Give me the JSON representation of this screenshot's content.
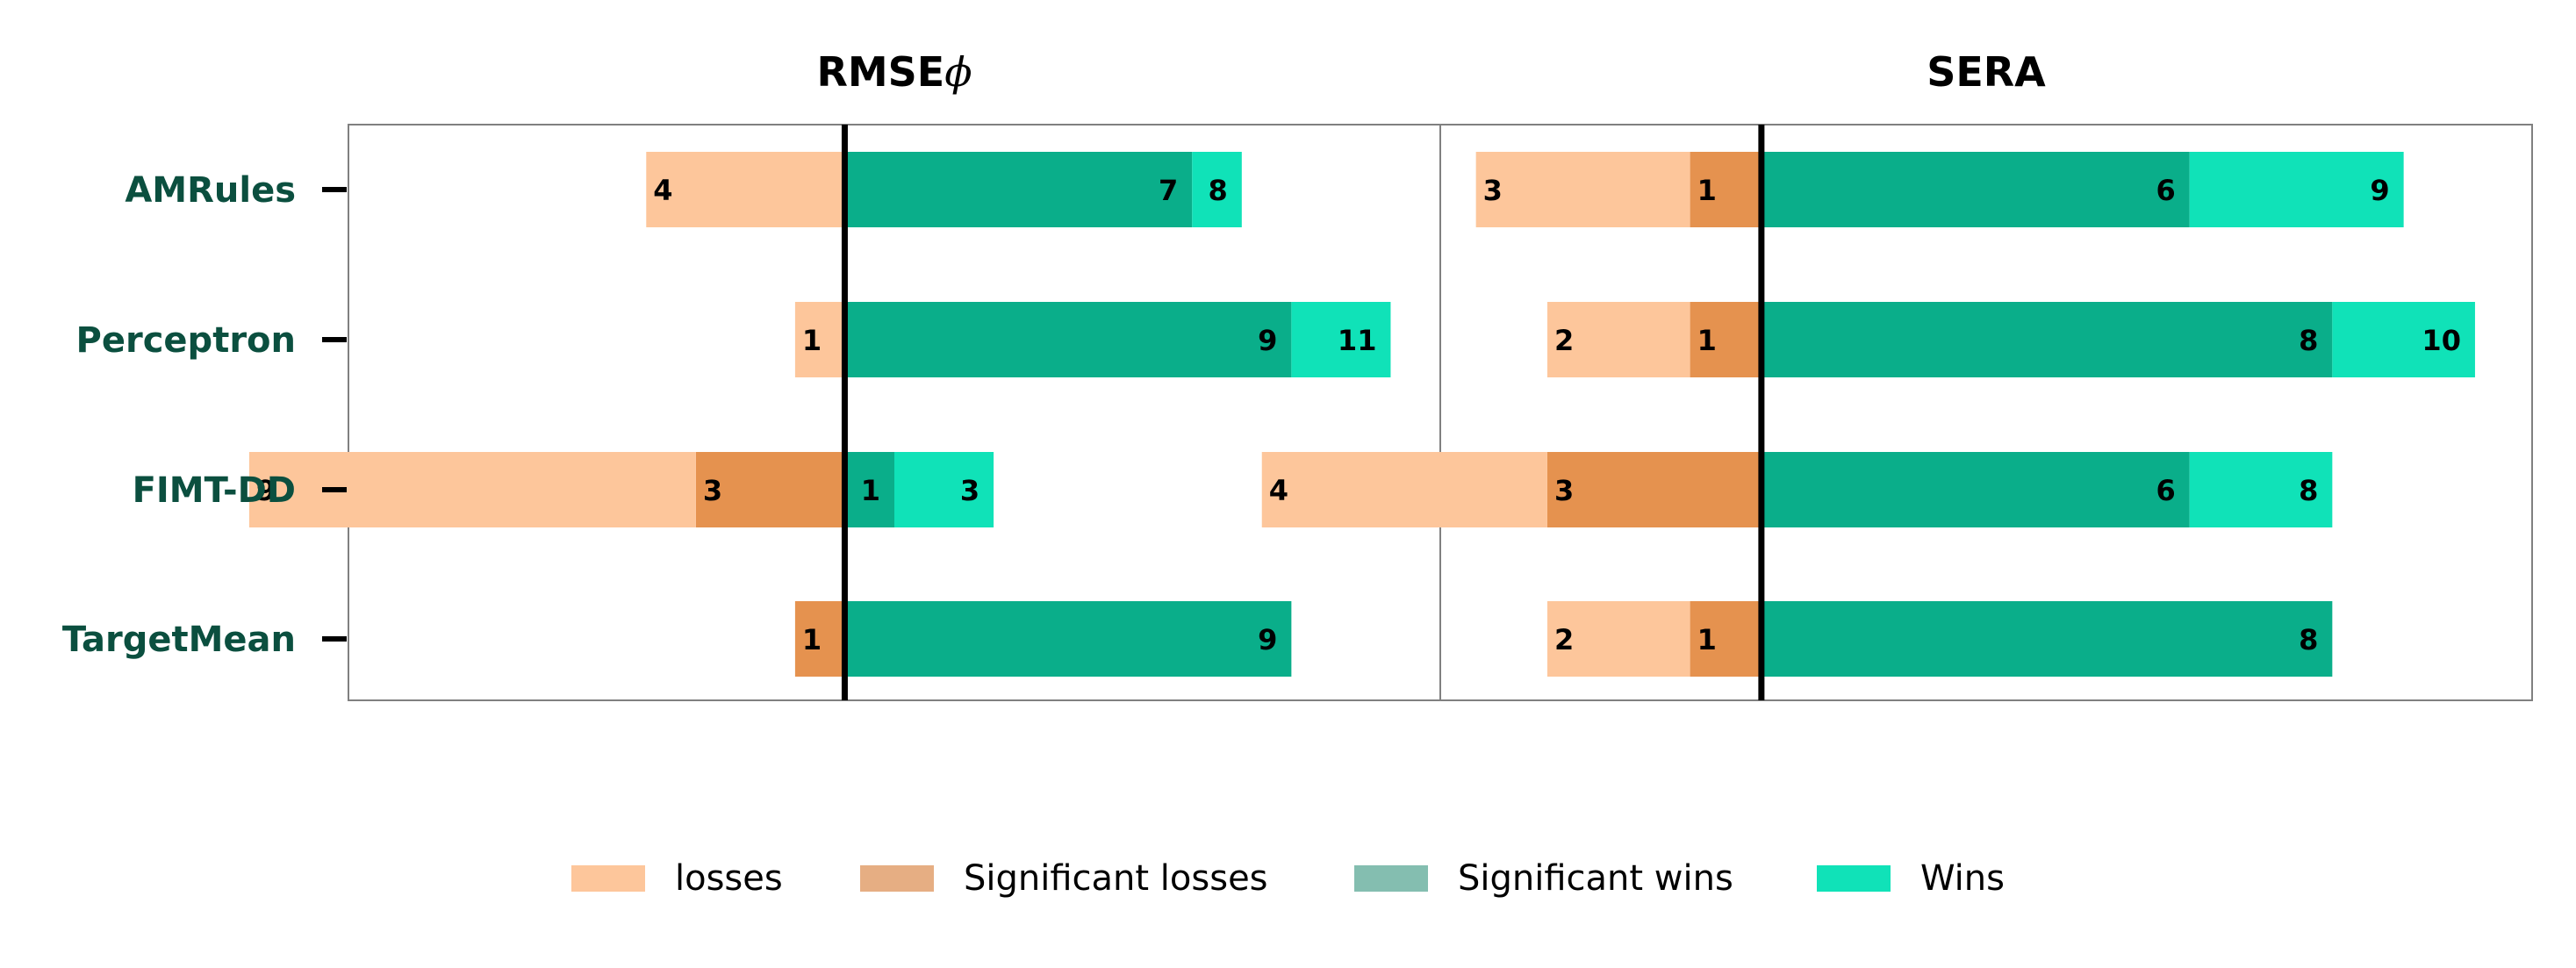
{
  "colors": {
    "losses": "#fdc69b",
    "significant_losses": "#e5924f",
    "significant_wins": "#0aae8a",
    "wins": "#10e2b8",
    "ylabel_color": "#0b4f3f",
    "legend_sig_losses_swatch": "#e6ae83",
    "legend_sig_wins_swatch": "#84beb0"
  },
  "chart_data": {
    "type": "bar",
    "orientation": "horizontal-diverging",
    "categories": [
      "AMRules",
      "Perceptron",
      "FIMT-DD",
      "TargetMean"
    ],
    "grid": false,
    "legend_placement": "bottom-center",
    "legend": [
      {
        "key": "losses",
        "label": "losses"
      },
      {
        "key": "significant_losses",
        "label": "Significant losses"
      },
      {
        "key": "significant_wins",
        "label": "Significant wins"
      },
      {
        "key": "wins",
        "label": "Wins"
      }
    ],
    "panels": [
      {
        "title": "RMSE",
        "title_symbol": "ϕ",
        "xlim": [
          -10,
          12
        ],
        "series": [
          {
            "key": "losses",
            "name": "losses",
            "values": [
              4,
              1,
              9,
              0
            ]
          },
          {
            "key": "significant_losses",
            "name": "Significant losses",
            "values": [
              0,
              0,
              3,
              1
            ]
          },
          {
            "key": "significant_wins",
            "name": "Significant wins",
            "values": [
              7,
              9,
              1,
              9
            ]
          },
          {
            "key": "wins",
            "name": "Wins",
            "values": [
              8,
              11,
              3,
              0
            ]
          }
        ]
      },
      {
        "title": "SERA",
        "title_symbol": "",
        "xlim": [
          -4.5,
          10.8
        ],
        "series": [
          {
            "key": "losses",
            "name": "losses",
            "values": [
              3,
              2,
              4,
              2
            ]
          },
          {
            "key": "significant_losses",
            "name": "Significant losses",
            "values": [
              1,
              1,
              3,
              1
            ]
          },
          {
            "key": "significant_wins",
            "name": "Significant wins",
            "values": [
              6,
              8,
              6,
              8
            ]
          },
          {
            "key": "wins",
            "name": "Wins",
            "values": [
              9,
              10,
              8,
              0
            ]
          }
        ]
      }
    ]
  }
}
